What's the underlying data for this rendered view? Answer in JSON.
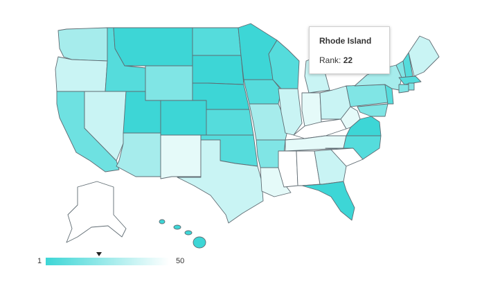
{
  "tooltip": {
    "state": "Rhode Island",
    "rank_label": "Rank:",
    "rank_value": "22"
  },
  "legend": {
    "min_label": "1",
    "max_label": "50",
    "marker_value": 22,
    "color_low_rank": "#3dd6d6",
    "color_high_rank": "#ffffff"
  },
  "colors": {
    "border": "#5f6b72",
    "tooltip_border": "#cfcfcf"
  }
}
